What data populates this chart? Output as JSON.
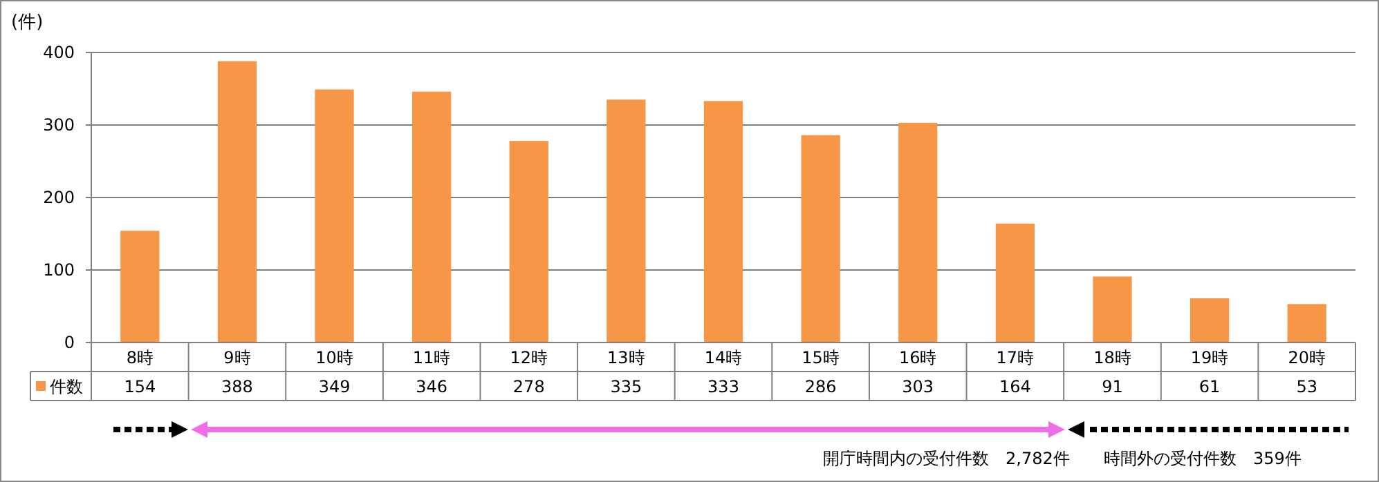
{
  "chart_data": {
    "type": "bar",
    "ylabel": "(件)",
    "categories": [
      "8時",
      "9時",
      "10時",
      "11時",
      "12時",
      "13時",
      "14時",
      "15時",
      "16時",
      "17時",
      "18時",
      "19時",
      "20時"
    ],
    "series": [
      {
        "name": "件数",
        "color": "#f79646",
        "values": [
          154,
          388,
          349,
          346,
          278,
          335,
          333,
          286,
          303,
          164,
          91,
          61,
          53
        ]
      }
    ],
    "ylim": [
      0,
      400
    ],
    "yticks": [
      0,
      100,
      200,
      300,
      400
    ],
    "grid": "y",
    "legend": "bottom",
    "data_labels": true,
    "annotations": [
      "開庁時間内の受付件数　2,782件",
      "時間外の受付件数　359件"
    ]
  }
}
